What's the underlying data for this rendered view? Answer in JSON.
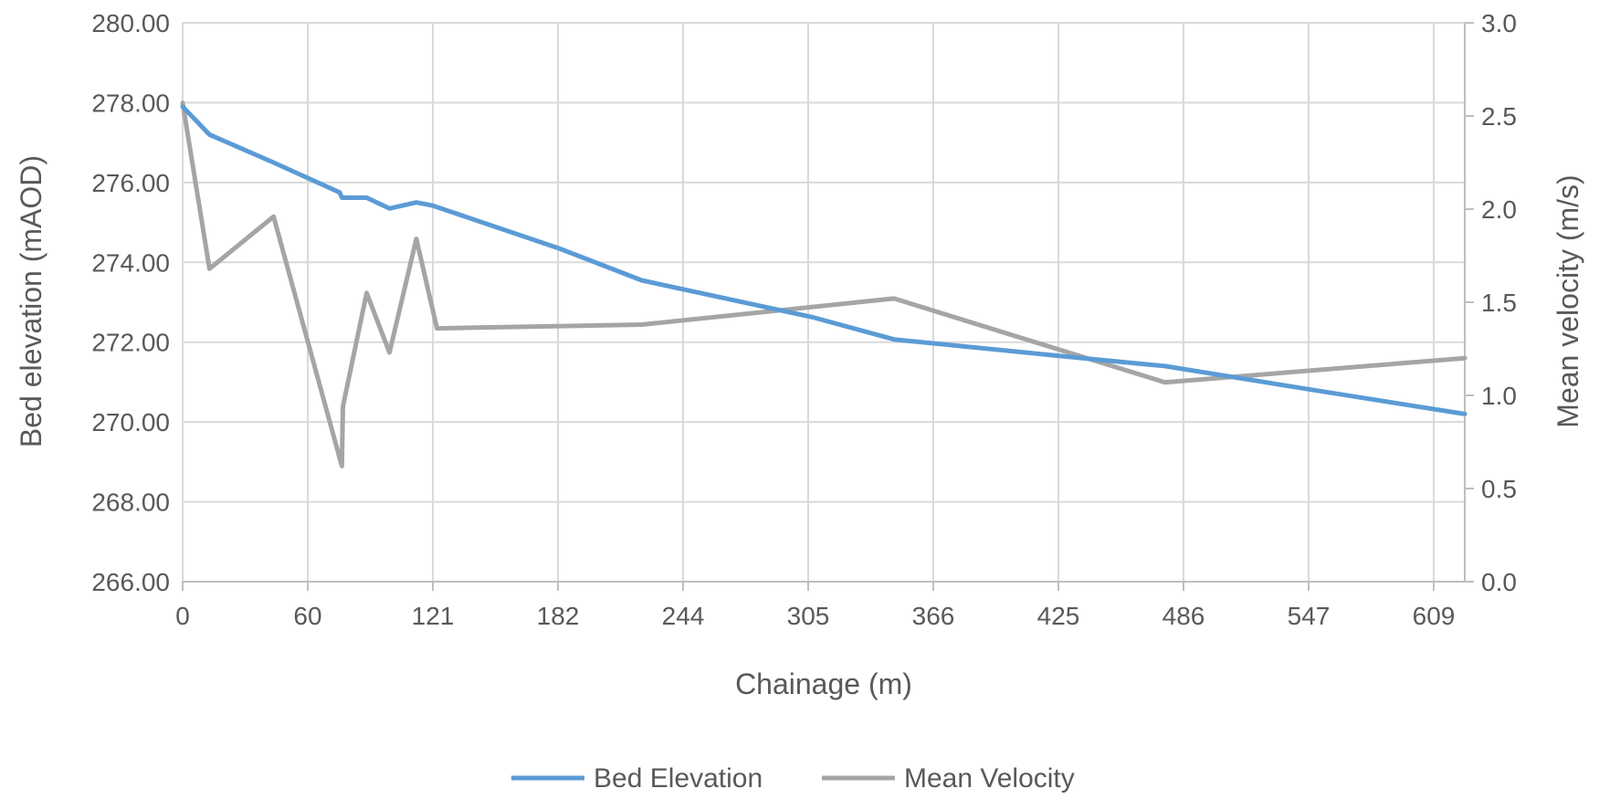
{
  "chart_data": {
    "type": "line",
    "xlabel": "Chainage (m)",
    "ylabel": "Bed elevation (mAOD)",
    "y2label": "Mean velocity (m/s)",
    "x_ticks": [
      "0",
      "60",
      "121",
      "182",
      "244",
      "305",
      "366",
      "425",
      "486",
      "547",
      "609"
    ],
    "y_ticks": [
      "266.00",
      "268.00",
      "270.00",
      "272.00",
      "274.00",
      "276.00",
      "278.00",
      "280.00"
    ],
    "y2_ticks": [
      "0.0",
      "0.5",
      "1.0",
      "1.5",
      "2.0",
      "2.5",
      "3.0"
    ],
    "xlim": [
      0,
      620
    ],
    "ylim": [
      266,
      280
    ],
    "y2lim": [
      0,
      3
    ],
    "grid": true,
    "legend_position": "bottom",
    "series": [
      {
        "name": "Bed Elevation",
        "axis": "left",
        "color": "#5b9bd5",
        "x": [
          0,
          13,
          44,
          76,
          77,
          89,
          100,
          113,
          121,
          182,
          222,
          305,
          344,
          425,
          475,
          547,
          620
        ],
        "y": [
          277.9,
          277.2,
          276.5,
          275.75,
          275.62,
          275.62,
          275.35,
          275.5,
          275.42,
          274.35,
          273.55,
          272.62,
          272.07,
          271.65,
          271.4,
          270.8,
          270.2
        ]
      },
      {
        "name": "Mean Velocity",
        "axis": "right",
        "color": "#a5a5a5",
        "x": [
          0,
          13,
          44,
          77,
          77.5,
          89,
          100,
          113,
          123,
          222,
          344,
          475,
          620
        ],
        "y": [
          2.57,
          1.68,
          1.96,
          0.62,
          0.94,
          1.55,
          1.23,
          1.84,
          1.36,
          1.38,
          1.52,
          1.07,
          1.2
        ]
      }
    ]
  }
}
